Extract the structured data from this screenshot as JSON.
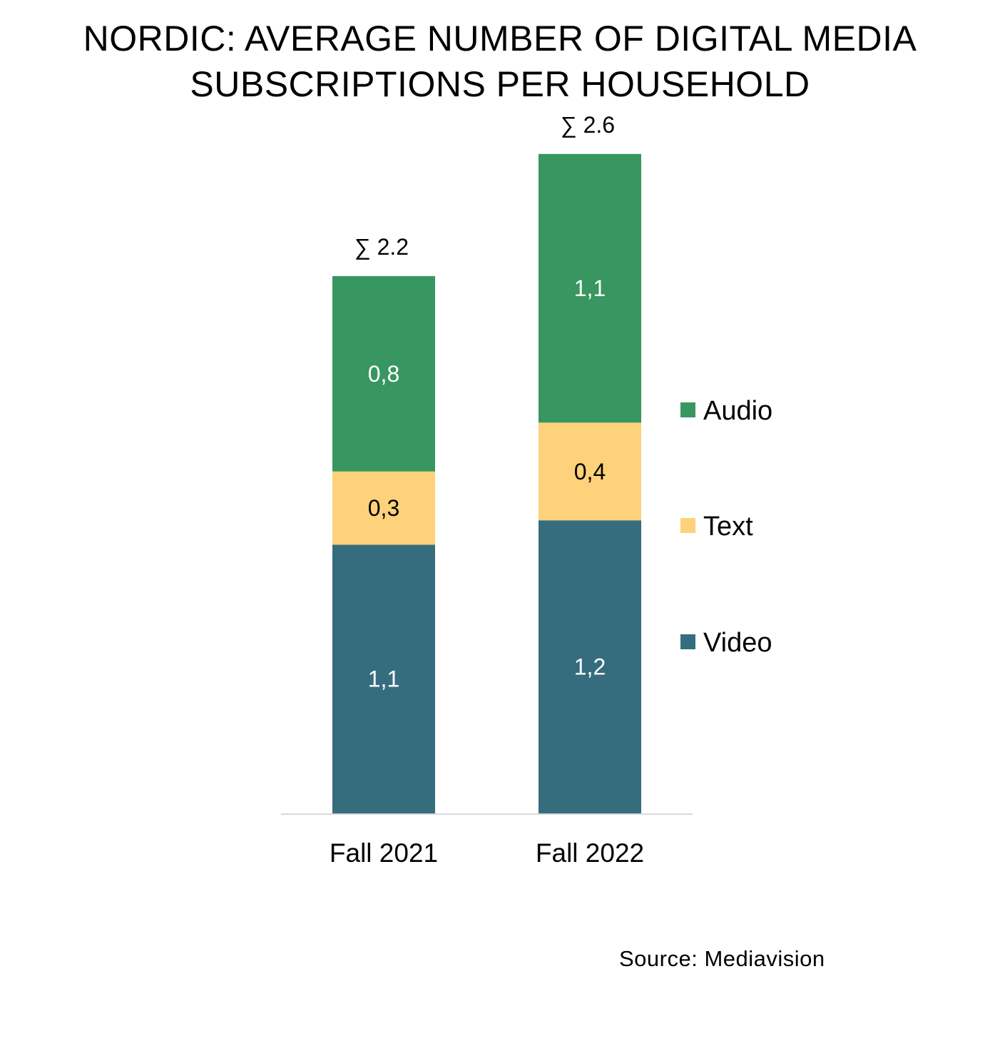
{
  "chart_data": {
    "type": "bar",
    "stacked": true,
    "title_lines": [
      "NORDIC: AVERAGE NUMBER OF DIGITAL MEDIA",
      "SUBSCRIPTIONS PER HOUSEHOLD"
    ],
    "categories": [
      "Fall 2021",
      "Fall 2022"
    ],
    "series": [
      {
        "name": "Video",
        "values": [
          1.1,
          1.2
        ],
        "labels": [
          "1,1",
          "1,2"
        ],
        "color": "#366d7e",
        "label_color": "#ffffff"
      },
      {
        "name": "Text",
        "values": [
          0.3,
          0.4
        ],
        "labels": [
          "0,3",
          "0,4"
        ],
        "color": "#fdd27a",
        "label_color": "#000000"
      },
      {
        "name": "Audio",
        "values": [
          0.8,
          1.1
        ],
        "labels": [
          "0,8",
          "1,1"
        ],
        "color": "#389660",
        "label_color": "#ffffff"
      }
    ],
    "totals": [
      "∑ 2.2",
      "∑ 2.6"
    ],
    "legend_order": [
      "Audio",
      "Text",
      "Video"
    ],
    "legend_position": "right",
    "grid": false,
    "ylim": [
      0,
      2.6
    ],
    "baseline_color": "#d9d9d9",
    "source": "Source: Mediavision"
  }
}
